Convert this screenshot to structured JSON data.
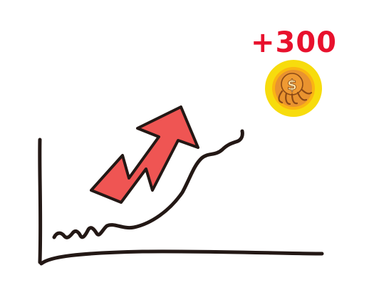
{
  "score": {
    "text": "+300"
  },
  "coin": {
    "icon": "octopus-dollar-coin-icon",
    "symbol": "$"
  },
  "colors": {
    "score_red": "#e8112d",
    "arrow_red": "#ef5553",
    "coin_outer": "#f7dc0d",
    "coin_rim": "#fbb512",
    "coin_face": "#e9932f",
    "coin_detail": "#8c4a16",
    "ink": "#231815"
  }
}
